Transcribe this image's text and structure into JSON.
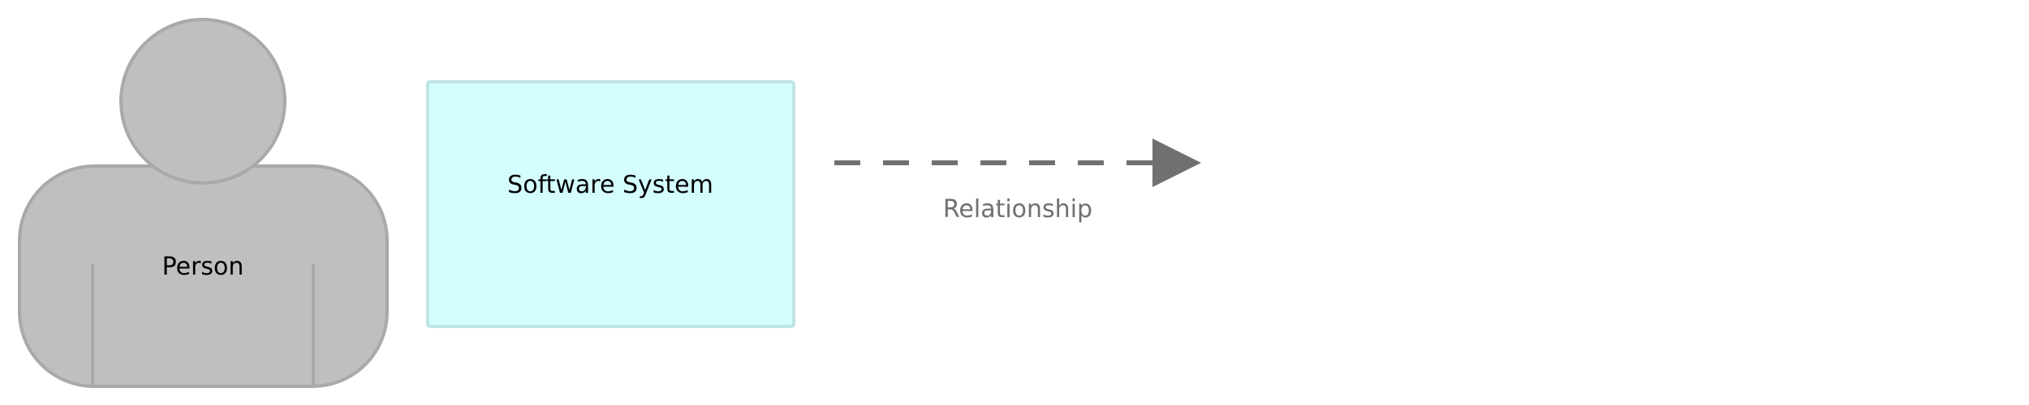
{
  "diagram": {
    "person": {
      "label": "Person",
      "fill": "#bfbfbf",
      "stroke": "#a9a9a9"
    },
    "software_system": {
      "label": "Software System",
      "fill": "#d4fdfd",
      "stroke": "#bfe5e5"
    },
    "relationship": {
      "label": "Relationship",
      "color": "#707070",
      "style": "dashed",
      "direction": "right"
    },
    "text_color": "#000000"
  }
}
